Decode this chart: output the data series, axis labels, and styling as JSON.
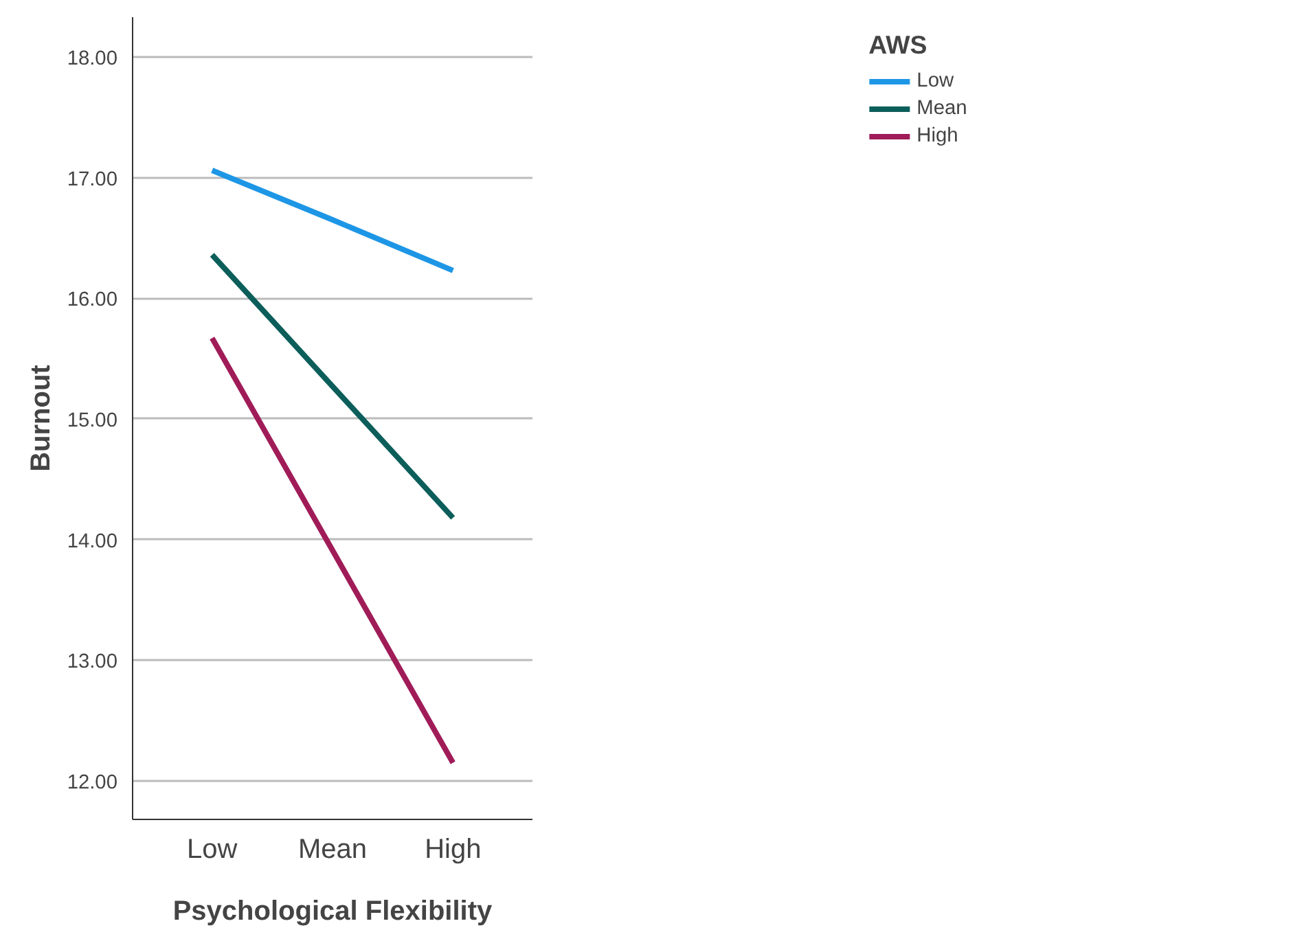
{
  "chart_data": {
    "type": "line",
    "xlabel": "Psychological Flexibility",
    "ylabel": "Burnout",
    "legend_title": "AWS",
    "categories": [
      "Low",
      "Mean",
      "High"
    ],
    "series": [
      {
        "name": "Low",
        "color": "#1e96e6",
        "values": [
          17.06,
          16.65,
          16.23
        ]
      },
      {
        "name": "Mean",
        "color": "#0c5e5a",
        "values": [
          16.36,
          15.27,
          14.18
        ]
      },
      {
        "name": "High",
        "color": "#a01c58",
        "values": [
          15.67,
          13.91,
          12.15
        ]
      }
    ],
    "ylim": [
      11.68,
      18.33
    ],
    "yticks": [
      {
        "value": 12,
        "label": "12.00"
      },
      {
        "value": 13,
        "label": "13.00"
      },
      {
        "value": 14,
        "label": "14.00"
      },
      {
        "value": 15,
        "label": "15.00"
      },
      {
        "value": 16,
        "label": "16.00"
      },
      {
        "value": 17,
        "label": "17.00"
      },
      {
        "value": 18,
        "label": "18.00"
      }
    ],
    "grid": "y",
    "legend": "top right",
    "marker": "none",
    "line_style": "solid"
  }
}
